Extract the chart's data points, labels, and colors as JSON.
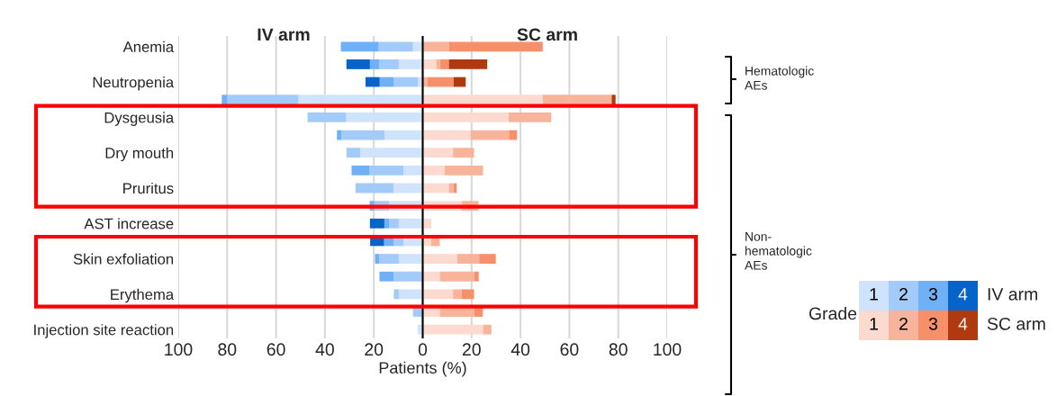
{
  "chart_data": {
    "type": "bar",
    "orientation": "horizontal",
    "stacked": true,
    "categories": [
      "Anemia",
      null,
      "Neutropenia",
      null,
      "Dysgeusia",
      null,
      "Dry mouth",
      null,
      "Pruritus",
      null,
      "AST increase",
      null,
      "Skin exfoliation",
      null,
      "Erythema",
      null,
      "Injection site reaction"
    ],
    "series": [
      {
        "name": "1",
        "color": "#cfe4fc",
        "values": [
          -4,
          -9.8,
          -2,
          -50.8,
          -31.3,
          -15.6,
          -25.5,
          -7.8,
          -11.9,
          -13.7,
          -9.8,
          -7.8,
          -9.8,
          0,
          -9.8,
          0,
          -2
        ]
      },
      {
        "name": "2",
        "color": "#a2cbfa",
        "values": [
          -14,
          -7.9,
          -9.8,
          -29.2,
          -15.8,
          -17.7,
          -5.7,
          -13.9,
          -15.6,
          -6.1,
          -4,
          -4.1,
          -7.9,
          -11.9,
          -2,
          -4,
          0
        ]
      },
      {
        "name": "3",
        "color": "#6fb0f7",
        "values": [
          -15.5,
          -3.9,
          -5.8,
          -2.2,
          0,
          -1.8,
          0,
          -7.4,
          0,
          -1.9,
          -1.9,
          -3.9,
          -1.8,
          -5.8,
          0,
          0,
          0
        ]
      },
      {
        "name": "4",
        "color": "#0563c9",
        "values": [
          0,
          -9.6,
          -5.8,
          0,
          0,
          0,
          0,
          0,
          0,
          0,
          -5.9,
          -5.7,
          0,
          0,
          0,
          0,
          0
        ]
      },
      {
        "color": "#fcdacf",
        "values": [
          0,
          5.5,
          0,
          49.1,
          35.2,
          19.6,
          12.4,
          9,
          10.7,
          15.9,
          3.5,
          3.5,
          14.1,
          7,
          12.4,
          7,
          24.7
        ]
      },
      {
        "color": "#f8b49a",
        "values": [
          10.7,
          1.7,
          2,
          28.2,
          17.4,
          15.7,
          8.6,
          15.7,
          1.9,
          6.9,
          0,
          3.5,
          9,
          14.1,
          3.5,
          14.1,
          3.4
        ]
      },
      {
        "color": "#f5906a",
        "values": [
          38.4,
          3.5,
          10.6,
          0,
          0,
          3.3,
          0,
          0,
          1.3,
          0,
          0,
          0,
          6.8,
          1.8,
          5.1,
          3.5,
          0
        ]
      },
      {
        "color": "#b0390f",
        "values": [
          0,
          15.7,
          5,
          1.6,
          0,
          0,
          0,
          0,
          0,
          0,
          0,
          0,
          0,
          0,
          0,
          0,
          0
        ]
      }
    ],
    "xlim": [
      -100,
      100
    ],
    "xticks": [
      {
        "value": -100,
        "label": "100"
      },
      {
        "value": -80,
        "label": "80"
      },
      {
        "value": -60,
        "label": "60"
      },
      {
        "value": -40,
        "label": "40"
      },
      {
        "value": -20,
        "label": "20"
      },
      0,
      20,
      40,
      60,
      80,
      100
    ],
    "xlabel": "Patients (%)",
    "grid": "x",
    "ref_lines": [
      {
        "axis": "x",
        "value": 0,
        "color": "#000000"
      }
    ],
    "legend": "right",
    "legend_title": "Grade",
    "annotations": [
      "IV arm",
      "SC arm",
      "Hematologic\nAEs",
      "Non-\nhematologic\nAEs",
      "IV arm",
      "SC arm"
    ]
  }
}
